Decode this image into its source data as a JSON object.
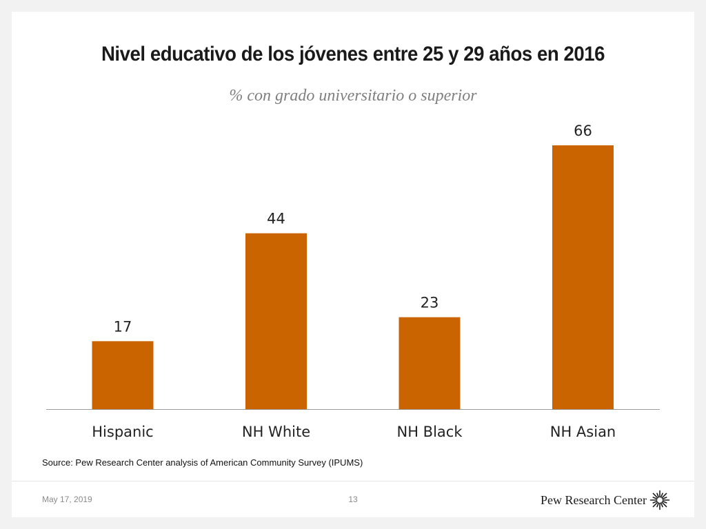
{
  "slide": {
    "title": "Nivel educativo de los jóvenes entre 25 y 29 años en 2016",
    "subtitle": "% con grado universitario o superior",
    "source": "Source: Pew Research Center analysis of American Community Survey (IPUMS)",
    "date": "May 17, 2019",
    "page_number": "13",
    "brand": "Pew Research Center",
    "brand_icon": "pew-sunburst-icon"
  },
  "colors": {
    "bar": "#c96400",
    "axis": "#9a9a9a",
    "background": "#f2f2f2"
  },
  "chart_data": {
    "type": "bar",
    "title": "Nivel educativo de los jóvenes entre 25 y 29 años en 2016",
    "subtitle": "% con grado universitario o superior",
    "categories": [
      "Hispanic",
      "NH White",
      "NH Black",
      "NH Asian"
    ],
    "values": [
      17,
      44,
      23,
      66
    ],
    "data_labels": [
      "17",
      "44",
      "23",
      "66"
    ],
    "xlabel": "",
    "ylabel": "",
    "ylim": [
      0,
      66
    ],
    "grid": false,
    "legend": "none"
  }
}
